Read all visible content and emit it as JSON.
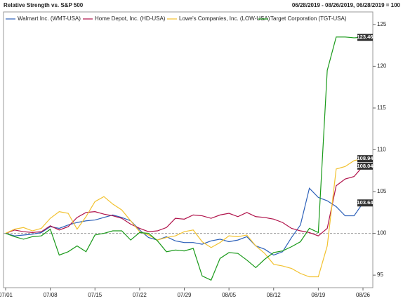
{
  "chart_data": {
    "type": "line",
    "title": "Relative Strength vs. S&P 500",
    "subtitle": "06/28/2019 - 08/26/2019, 06/28/2019 = 100",
    "categories": [
      "07/01",
      null,
      null,
      null,
      null,
      "07/08",
      null,
      null,
      null,
      null,
      "07/15",
      null,
      null,
      null,
      null,
      "07/22",
      null,
      null,
      null,
      null,
      "07/29",
      null,
      null,
      null,
      null,
      "08/05",
      null,
      null,
      null,
      null,
      "08/12",
      null,
      null,
      null,
      null,
      "08/19",
      null,
      null,
      null,
      null,
      "08/26"
    ],
    "series": [
      {
        "name": "Walmart Inc. (WMT-USA)",
        "color": "#2b5fb8",
        "values": [
          100,
          99.7,
          99.8,
          99.9,
          100.1,
          100.8,
          100.6,
          101,
          101.3,
          101.5,
          101.6,
          101.9,
          102.2,
          101.9,
          101.5,
          100.4,
          99.5,
          99.2,
          99.6,
          99.1,
          98.9,
          98.9,
          98.7,
          99.1,
          99.3,
          99.0,
          99.2,
          99.6,
          98.5,
          98.1,
          97.4,
          97.8,
          99.5,
          101,
          105.4,
          104.3,
          103.9,
          103.2,
          102.1,
          102.1,
          103.64
        ]
      },
      {
        "name": "Home Depot, Inc. (HD-USA)",
        "color": "#b0124a",
        "values": [
          100,
          100.4,
          100.2,
          100.1,
          100.2,
          100.9,
          100.4,
          100.8,
          101.9,
          102.5,
          102.6,
          102.3,
          102.1,
          101.8,
          101.1,
          100.6,
          100.2,
          100.3,
          100.7,
          101.8,
          101.7,
          102.2,
          102.1,
          101.8,
          102.2,
          102.4,
          102.0,
          102.5,
          102.0,
          101.9,
          101.7,
          101.3,
          100.6,
          100.3,
          100.1,
          99.7,
          100.6,
          105.7,
          106.5,
          106.8,
          108.04
        ]
      },
      {
        "name": "Lowe's Companies, Inc. (LOW-USA)",
        "color": "#f2c230",
        "values": [
          100,
          100.5,
          100.7,
          100.3,
          100.6,
          101.8,
          102.6,
          102.4,
          100.5,
          102.0,
          103.8,
          104.4,
          103.5,
          102.8,
          101.5,
          100.2,
          99.8,
          99.2,
          99.5,
          99.7,
          100.2,
          100.4,
          99.0,
          98.3,
          98.9,
          99.7,
          99.6,
          99.8,
          98.5,
          97.6,
          96.3,
          96.1,
          95.8,
          95.2,
          94.8,
          94.8,
          98.5,
          107.7,
          108.0,
          108.7,
          108.94
        ]
      },
      {
        "name": "Target Corporation (TGT-USA)",
        "color": "#1a9a1a",
        "values": [
          100,
          99.6,
          99.3,
          99.6,
          99.7,
          100.5,
          97.4,
          97.8,
          98.5,
          97.8,
          99.8,
          100.0,
          100.3,
          100.3,
          99.2,
          100.1,
          100.0,
          99.1,
          97.8,
          98.0,
          97.9,
          98.2,
          94.9,
          94.4,
          97.0,
          97.7,
          97.6,
          96.8,
          95.9,
          96.9,
          97.7,
          97.9,
          98.4,
          99.0,
          100.6,
          100.1,
          119.5,
          123.5,
          123.5,
          123.4,
          123.46
        ]
      }
    ],
    "baseline": 100,
    "ylim": [
      93.5,
      126.5
    ],
    "yticks": [
      95,
      100,
      105,
      110,
      115,
      120,
      125
    ]
  }
}
